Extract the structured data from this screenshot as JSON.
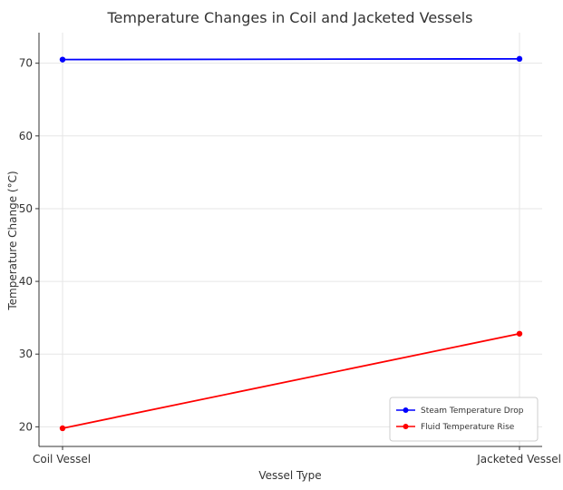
{
  "chart_data": {
    "type": "line",
    "title": "Temperature Changes in Coil and Jacketed Vessels",
    "xlabel": "Vessel Type",
    "ylabel": "Temperature Change (°C)",
    "categories": [
      "Coil Vessel",
      "Jacketed Vessel"
    ],
    "ylim": [
      17.3,
      74.2
    ],
    "yticks": [
      20,
      30,
      40,
      50,
      60,
      70
    ],
    "grid": true,
    "legend_position": "bottom-right",
    "series": [
      {
        "name": "Steam Temperature Drop",
        "values": [
          70.5,
          70.6
        ],
        "color": "#0000ff",
        "marker": "circle"
      },
      {
        "name": "Fluid Temperature Rise",
        "values": [
          19.8,
          32.8
        ],
        "color": "#ff0000",
        "marker": "circle"
      }
    ]
  }
}
